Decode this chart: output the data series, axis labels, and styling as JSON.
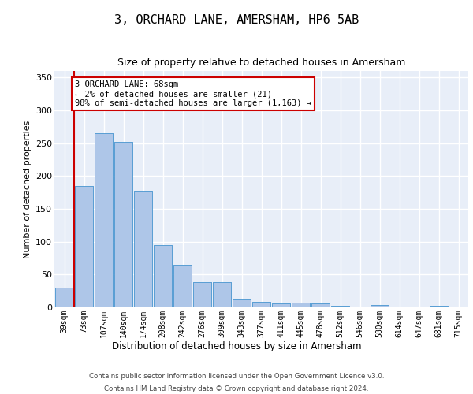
{
  "title": "3, ORCHARD LANE, AMERSHAM, HP6 5AB",
  "subtitle": "Size of property relative to detached houses in Amersham",
  "xlabel": "Distribution of detached houses by size in Amersham",
  "ylabel": "Number of detached properties",
  "footer1": "Contains HM Land Registry data © Crown copyright and database right 2024.",
  "footer2": "Contains public sector information licensed under the Open Government Licence v3.0.",
  "annotation_line1": "3 ORCHARD LANE: 68sqm",
  "annotation_line2": "← 2% of detached houses are smaller (21)",
  "annotation_line3": "98% of semi-detached houses are larger (1,163) →",
  "bar_color": "#aec6e8",
  "bar_edge_color": "#5a9fd4",
  "vline_color": "#cc0000",
  "annotation_box_color": "#cc0000",
  "background_color": "#e8eef8",
  "grid_color": "#ffffff",
  "categories": [
    "39sqm",
    "73sqm",
    "107sqm",
    "140sqm",
    "174sqm",
    "208sqm",
    "242sqm",
    "276sqm",
    "309sqm",
    "343sqm",
    "377sqm",
    "411sqm",
    "445sqm",
    "478sqm",
    "512sqm",
    "546sqm",
    "580sqm",
    "614sqm",
    "647sqm",
    "681sqm",
    "715sqm"
  ],
  "values": [
    30,
    185,
    265,
    252,
    177,
    95,
    65,
    39,
    39,
    12,
    8,
    6,
    7,
    6,
    3,
    1,
    4,
    1,
    1,
    2,
    1
  ],
  "vline_x": 0.5,
  "ylim": [
    0,
    360
  ],
  "yticks": [
    0,
    50,
    100,
    150,
    200,
    250,
    300,
    350
  ]
}
